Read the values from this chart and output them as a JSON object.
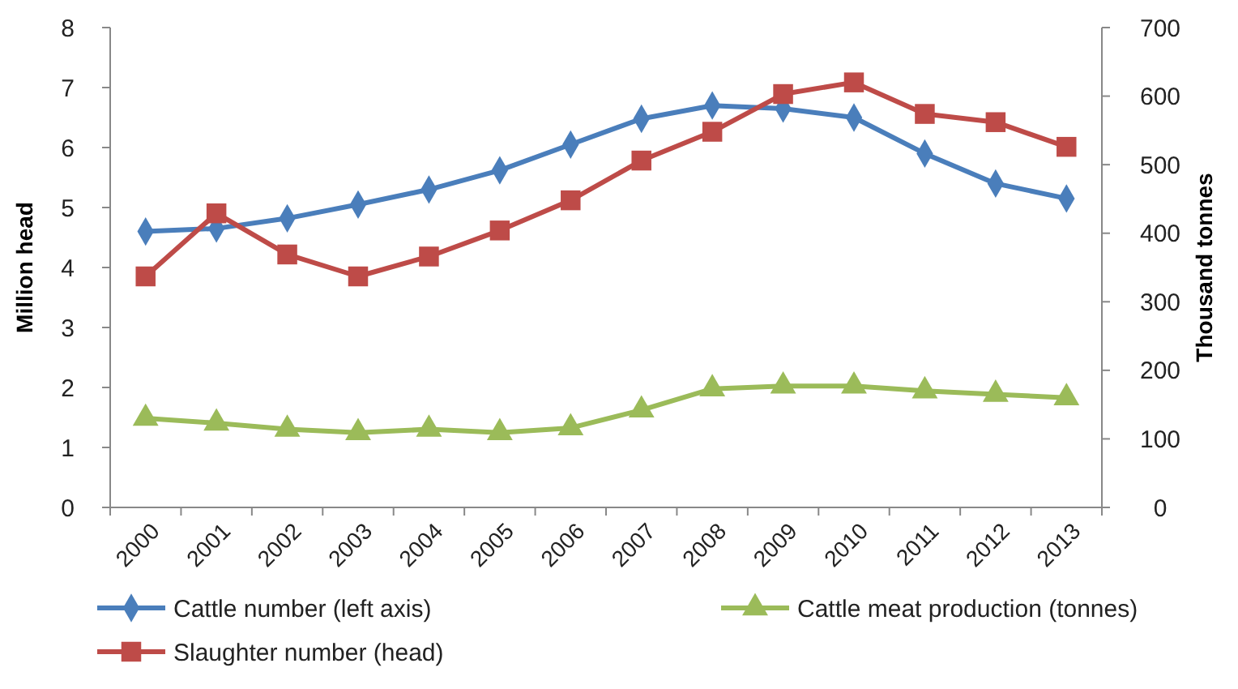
{
  "chart_data": {
    "type": "line",
    "ylabel": "Million head",
    "y2label": "Thousand tonnes",
    "categories": [
      "2000",
      "2001",
      "2002",
      "2003",
      "2004",
      "2005",
      "2006",
      "2007",
      "2008",
      "2009",
      "2010",
      "2011",
      "2012",
      "2013"
    ],
    "series": [
      {
        "name": "Cattle number (left axis)",
        "color": "#4a7ebb",
        "marker": "diamond",
        "values": [
          4.6,
          4.65,
          4.82,
          5.05,
          5.3,
          5.62,
          6.05,
          6.48,
          6.7,
          6.65,
          6.5,
          5.9,
          5.4,
          5.15
        ]
      },
      {
        "name": "Cattle meat production (tonnes)",
        "color": "#9bbb59",
        "marker": "triangle",
        "axis": "y2",
        "values": [
          130,
          123,
          114,
          109,
          114,
          109,
          116,
          142,
          173,
          177,
          177,
          170,
          165,
          160
        ]
      },
      {
        "name": "Slaughter number (head)",
        "color": "#be4b48",
        "marker": "square",
        "axis": "y2",
        "values": [
          337,
          429,
          369,
          337,
          366,
          404,
          448,
          506,
          548,
          603,
          620,
          574,
          562,
          526
        ]
      }
    ],
    "ylim": [
      0,
      8
    ],
    "yticks": [
      0,
      1,
      2,
      3,
      4,
      5,
      6,
      7,
      8
    ],
    "y2lim": [
      0,
      700
    ],
    "y2ticks": [
      0,
      100,
      200,
      300,
      400,
      500,
      600,
      700
    ],
    "grid": false,
    "legend": "bottom"
  }
}
